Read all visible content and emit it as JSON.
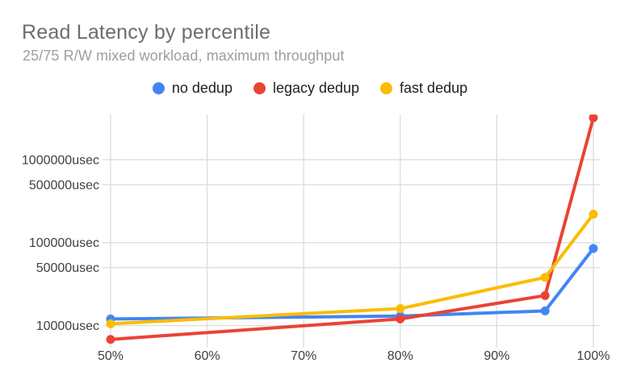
{
  "chart": {
    "title": "Read Latency by percentile",
    "subtitle": "25/75 R/W mixed workload, maximum throughput"
  },
  "chart_data": {
    "type": "line",
    "title": "Read Latency by percentile",
    "subtitle": "25/75 R/W mixed workload, maximum throughput",
    "xlabel": "",
    "ylabel": "",
    "x": [
      50,
      80,
      95,
      100
    ],
    "series": [
      {
        "name": "no dedup",
        "color": "#4285F4",
        "values": [
          12000,
          13000,
          15000,
          85000
        ]
      },
      {
        "name": "legacy dedup",
        "color": "#EA4335",
        "values": [
          6800,
          12000,
          23000,
          3200000
        ],
        "last_point_clipped_at_top": true
      },
      {
        "name": "fast dedup",
        "color": "#FBBC04",
        "values": [
          10500,
          16000,
          38000,
          220000
        ]
      }
    ],
    "x_axis": {
      "min": 50,
      "max": 100,
      "ticks": [
        {
          "value": 50,
          "label": "50%"
        },
        {
          "value": 60,
          "label": "60%"
        },
        {
          "value": 70,
          "label": "70%"
        },
        {
          "value": 80,
          "label": "80%"
        },
        {
          "value": 90,
          "label": "90%"
        },
        {
          "value": 100,
          "label": "100%"
        }
      ]
    },
    "y_axis": {
      "scale": "log",
      "unit": "usec",
      "bottom_value": 6180,
      "top_value": 3500000,
      "ticks": [
        {
          "value": 10000,
          "label": "10000usec"
        },
        {
          "value": 50000,
          "label": "50000usec"
        },
        {
          "value": 100000,
          "label": "100000usec"
        },
        {
          "value": 500000,
          "label": "500000usec"
        },
        {
          "value": 1000000,
          "label": "1000000usec"
        }
      ]
    },
    "grid": true,
    "legend_position": "top",
    "marker": "circle",
    "line_width": 4,
    "marker_radius": 5.5
  },
  "colors": {
    "background": "#ffffff",
    "title": "#6d6d6d",
    "subtitle": "#9e9e9e",
    "axis_label": "#3c4043",
    "gridline": "#dcdcdc",
    "series_blue": "#4285F4",
    "series_red": "#EA4335",
    "series_yellow": "#FBBC04"
  }
}
